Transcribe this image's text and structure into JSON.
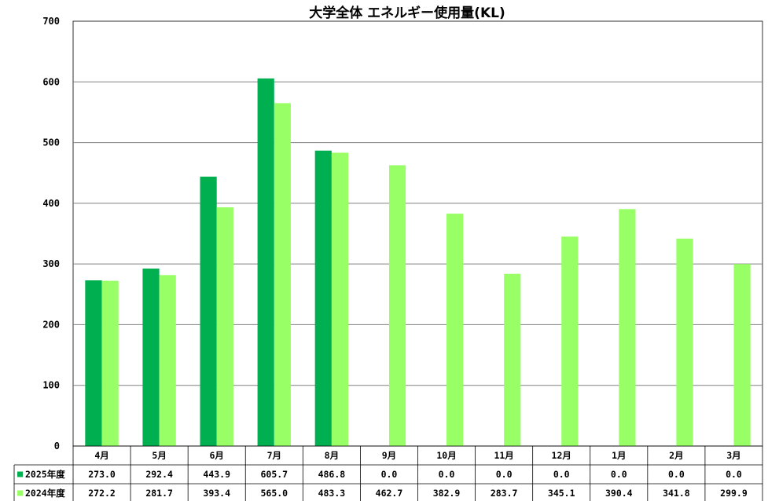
{
  "chart_data": {
    "type": "bar",
    "title": "大学全体 エネルギー使用量(KL)",
    "categories": [
      "4月",
      "5月",
      "6月",
      "7月",
      "8月",
      "9月",
      "10月",
      "11月",
      "12月",
      "1月",
      "2月",
      "3月"
    ],
    "series": [
      {
        "name": "2025年度",
        "color": "#00b050",
        "values": [
          273.0,
          292.4,
          443.9,
          605.7,
          486.8,
          0.0,
          0.0,
          0.0,
          0.0,
          0.0,
          0.0,
          0.0
        ],
        "labels": [
          "273.0",
          "292.4",
          "443.9",
          "605.7",
          "486.8",
          "0.0",
          "0.0",
          "0.0",
          "0.0",
          "0.0",
          "0.0",
          "0.0"
        ]
      },
      {
        "name": "2024年度",
        "color": "#99ff66",
        "values": [
          272.2,
          281.7,
          393.4,
          565.0,
          483.3,
          462.7,
          382.9,
          283.7,
          345.1,
          390.4,
          341.8,
          299.9
        ],
        "labels": [
          "272.2",
          "281.7",
          "393.4",
          "565.0",
          "483.3",
          "462.7",
          "382.9",
          "283.7",
          "345.1",
          "390.4",
          "341.8",
          "299.9"
        ]
      }
    ],
    "ylim": [
      0,
      700
    ],
    "yticks": [
      "0",
      "100",
      "200",
      "300",
      "400",
      "500",
      "600",
      "700"
    ],
    "grid": true,
    "legend": "data-table"
  }
}
